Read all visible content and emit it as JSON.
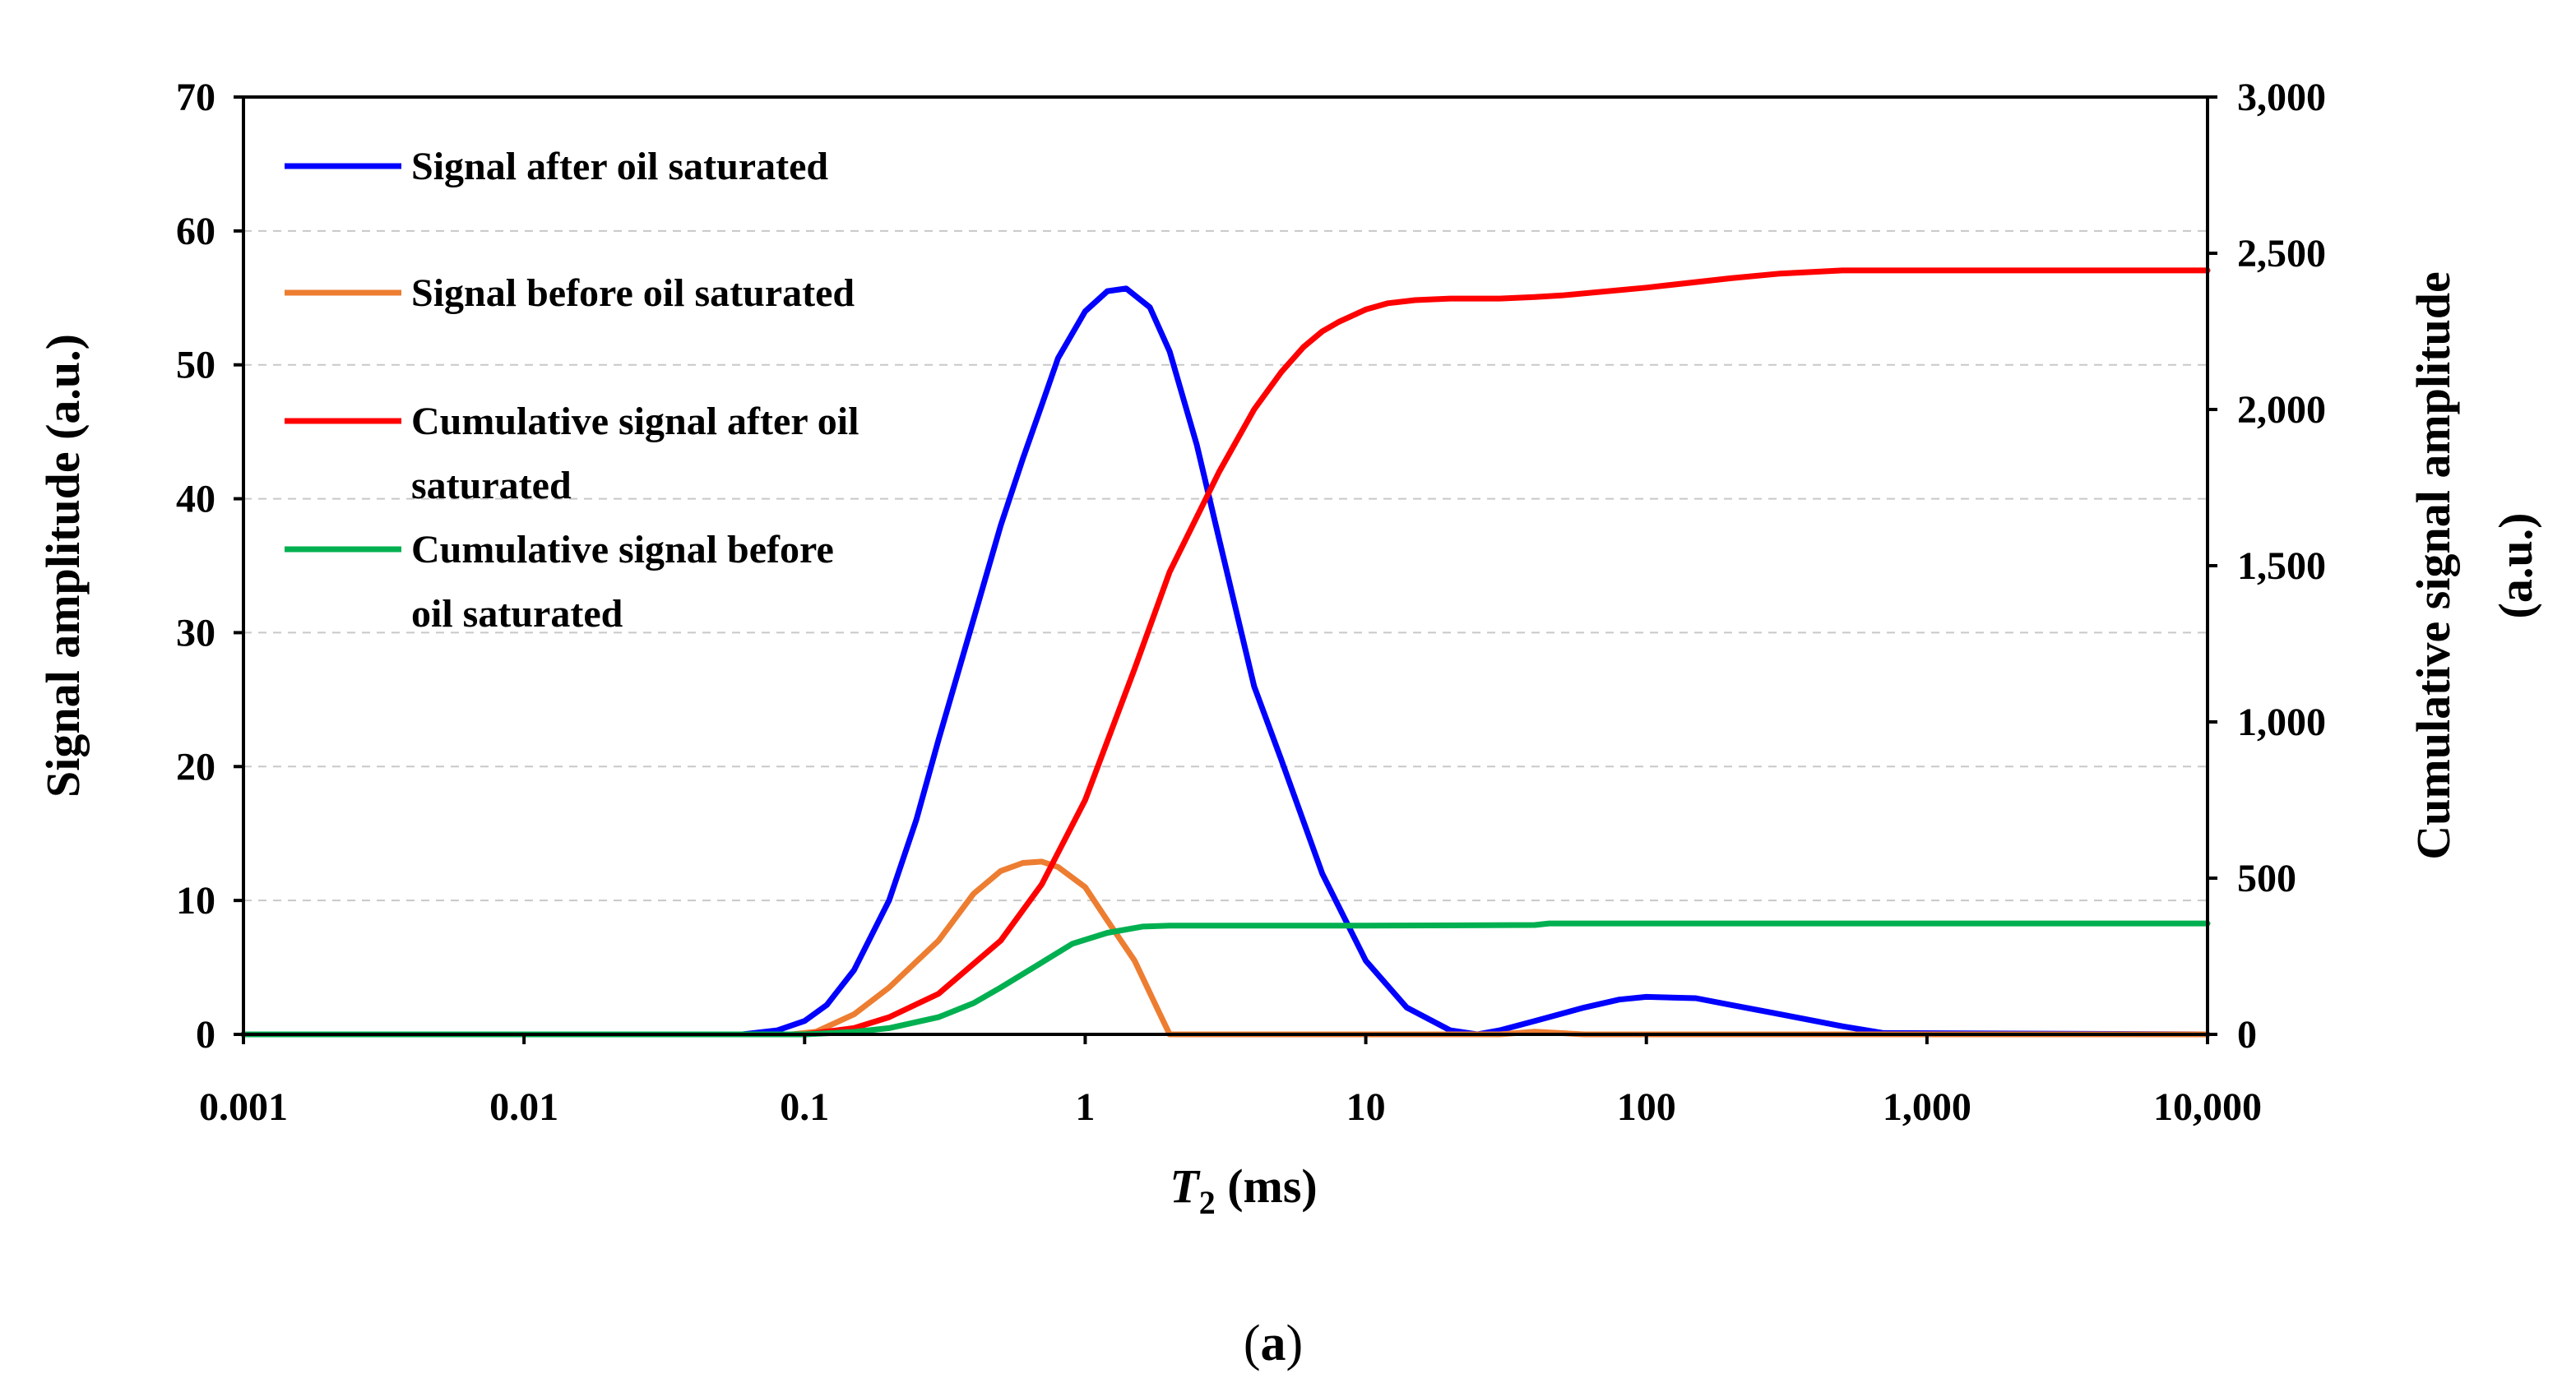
{
  "chart_data": {
    "type": "line",
    "title": "",
    "xlabel": {
      "italic": "T",
      "sub": "2",
      "rest": " (ms)"
    },
    "ylabel": "Signal amplitude (a.u.)",
    "y2label": [
      "Cumulative signal amplitude",
      "(a.u.)"
    ],
    "xscale": "log",
    "xlim": [
      0.001,
      10000
    ],
    "ylim": [
      0,
      70
    ],
    "y2lim": [
      0,
      3000
    ],
    "xticks": [
      0.001,
      0.01,
      0.1,
      1,
      10,
      100,
      1000,
      10000
    ],
    "xtick_labels": [
      "0.001",
      "0.01",
      "0.1",
      "1",
      "10",
      "100",
      "1,000",
      "10,000"
    ],
    "yticks": [
      0,
      10,
      20,
      30,
      40,
      50,
      60,
      70
    ],
    "ytick_labels": [
      "0",
      "10",
      "20",
      "30",
      "40",
      "50",
      "60",
      "70"
    ],
    "y2ticks": [
      0,
      500,
      1000,
      1500,
      2000,
      2500,
      3000
    ],
    "y2tick_labels": [
      "0",
      "500",
      "1,000",
      "1,500",
      "2,000",
      "2,500",
      "3,000"
    ],
    "grid": "horizontal-dashed",
    "legend_position": "top-left",
    "series": [
      {
        "name": "Signal after oil saturated",
        "color": "#0000ff",
        "axis": "left",
        "x": [
          0.001,
          0.06,
          0.08,
          0.1,
          0.12,
          0.15,
          0.2,
          0.25,
          0.3,
          0.4,
          0.5,
          0.6,
          0.7,
          0.8,
          1.0,
          1.2,
          1.4,
          1.7,
          2.0,
          2.5,
          3.0,
          4.0,
          5.0,
          7.0,
          10.0,
          14.0,
          20.0,
          25.0,
          30.0,
          40.0,
          60.0,
          80.0,
          100.0,
          150.0,
          200.0,
          300.0,
          500.0,
          700.0,
          10000.0
        ],
        "y": [
          0,
          0,
          0.3,
          1.0,
          2.2,
          4.8,
          10.0,
          16.0,
          22.0,
          31.0,
          38.0,
          43.0,
          47.0,
          50.5,
          54.0,
          55.5,
          55.7,
          54.3,
          51.0,
          44.0,
          37.0,
          26.0,
          20.5,
          12.0,
          5.5,
          2.0,
          0.3,
          0.0,
          0.3,
          1.0,
          2.0,
          2.6,
          2.8,
          2.7,
          2.2,
          1.5,
          0.6,
          0.1,
          0
        ]
      },
      {
        "name": "Signal before oil saturated",
        "color": "#ed7d31",
        "axis": "left",
        "x": [
          0.001,
          0.09,
          0.11,
          0.15,
          0.2,
          0.3,
          0.4,
          0.5,
          0.6,
          0.7,
          0.8,
          1.0,
          1.2,
          1.5,
          1.8,
          2.0,
          30.0,
          40.0,
          60.0,
          10000.0
        ],
        "y": [
          0,
          0,
          0.2,
          1.5,
          3.5,
          7.0,
          10.5,
          12.2,
          12.8,
          12.9,
          12.5,
          11.0,
          8.5,
          5.5,
          2.0,
          0.0,
          0.0,
          0.2,
          0.0,
          0
        ]
      },
      {
        "name": "Cumulative signal after oil saturated",
        "color": "#ff0000",
        "axis": "right",
        "x": [
          0.001,
          0.1,
          0.15,
          0.2,
          0.3,
          0.5,
          0.7,
          1.0,
          1.5,
          2.0,
          3.0,
          4.0,
          5.0,
          6.0,
          7.0,
          8.0,
          10.0,
          12.0,
          15.0,
          20.0,
          30.0,
          40.0,
          50.0,
          100.0,
          200.0,
          300.0,
          500.0,
          1000.0,
          10000.0
        ],
        "y": [
          0,
          0,
          20,
          55,
          130,
          300,
          480,
          750,
          1170,
          1480,
          1800,
          2000,
          2120,
          2200,
          2250,
          2280,
          2320,
          2340,
          2350,
          2355,
          2355,
          2360,
          2365,
          2390,
          2420,
          2435,
          2445,
          2445,
          2445
        ]
      },
      {
        "name": "Cumulative signal before oil saturated",
        "color": "#00b050",
        "axis": "right",
        "x": [
          0.001,
          0.1,
          0.15,
          0.2,
          0.3,
          0.4,
          0.5,
          0.7,
          0.9,
          1.2,
          1.6,
          2.0,
          10.0,
          40.0,
          45.0,
          100.0,
          10000.0
        ],
        "y": [
          0,
          0,
          8,
          20,
          55,
          100,
          150,
          230,
          290,
          325,
          345,
          348,
          348,
          350,
          355,
          355,
          355
        ]
      }
    ]
  },
  "legend": {
    "items": [
      {
        "lines": [
          "Signal after oil saturated"
        ]
      },
      {
        "lines": [
          "Signal before oil saturated"
        ]
      },
      {
        "lines": [
          "Cumulative signal after oil",
          "saturated"
        ]
      },
      {
        "lines": [
          "Cumulative signal before",
          "oil saturated"
        ]
      }
    ]
  },
  "caption": {
    "open": "(",
    "letter": "a",
    "close": ")"
  }
}
